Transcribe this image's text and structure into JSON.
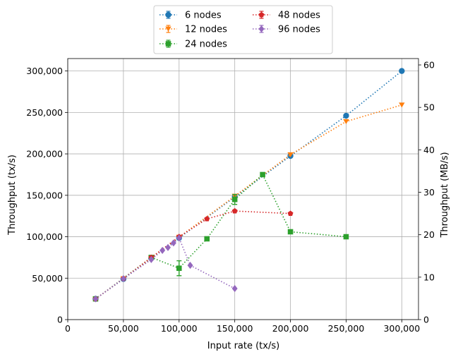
{
  "chart_data": {
    "type": "line",
    "xlabel": "Input rate (tx/s)",
    "ylabel": "Throughput (tx/s)",
    "y2label": "Throughput (MB/s)",
    "xlim": [
      0,
      315000
    ],
    "ylim": [
      0,
      315000
    ],
    "y2lim": [
      0,
      61.5
    ],
    "x_ticks": [
      0,
      50000,
      100000,
      150000,
      200000,
      250000,
      300000
    ],
    "x_tick_labels": [
      "0",
      "50,000",
      "100,000",
      "150,000",
      "200,000",
      "250,000",
      "300,000"
    ],
    "y_ticks": [
      0,
      50000,
      100000,
      150000,
      200000,
      250000,
      300000
    ],
    "y_tick_labels": [
      "0",
      "50,000",
      "100,000",
      "150,000",
      "200,000",
      "250,000",
      "300,000"
    ],
    "y2_ticks": [
      0,
      10,
      20,
      30,
      40,
      50,
      60
    ],
    "y2_tick_labels": [
      "0",
      "10",
      "20",
      "30",
      "40",
      "50",
      "60"
    ],
    "grid": true,
    "legend_position": "top-center",
    "series": [
      {
        "name": "6 nodes",
        "color": "#1f77b4",
        "marker": "circle",
        "points": [
          {
            "x": 25000,
            "y": 25000
          },
          {
            "x": 50000,
            "y": 49000
          },
          {
            "x": 75000,
            "y": 74000
          },
          {
            "x": 100000,
            "y": 98500
          },
          {
            "x": 150000,
            "y": 148000
          },
          {
            "x": 200000,
            "y": 197500
          },
          {
            "x": 250000,
            "y": 246000
          },
          {
            "x": 300000,
            "y": 300000
          }
        ]
      },
      {
        "name": "12 nodes",
        "color": "#ff7f0e",
        "marker": "triangle-down",
        "points": [
          {
            "x": 25000,
            "y": 25000
          },
          {
            "x": 50000,
            "y": 49500
          },
          {
            "x": 75000,
            "y": 74500
          },
          {
            "x": 100000,
            "y": 99500
          },
          {
            "x": 150000,
            "y": 149000
          },
          {
            "x": 200000,
            "y": 199000
          },
          {
            "x": 250000,
            "y": 239000
          },
          {
            "x": 300000,
            "y": 259000
          }
        ]
      },
      {
        "name": "24 nodes",
        "color": "#2ca02c",
        "marker": "square",
        "points": [
          {
            "x": 25000,
            "y": 25000
          },
          {
            "x": 75000,
            "y": 75000
          },
          {
            "x": 100000,
            "y": 62000,
            "err": 9000
          },
          {
            "x": 125000,
            "y": 97500
          },
          {
            "x": 150000,
            "y": 145000,
            "err": 6000
          },
          {
            "x": 175000,
            "y": 175000
          },
          {
            "x": 200000,
            "y": 106000
          },
          {
            "x": 250000,
            "y": 100000
          }
        ]
      },
      {
        "name": "48 nodes",
        "color": "#d62728",
        "marker": "pentagon",
        "points": [
          {
            "x": 25000,
            "y": 25000
          },
          {
            "x": 50000,
            "y": 49500
          },
          {
            "x": 75000,
            "y": 75000
          },
          {
            "x": 100000,
            "y": 100000
          },
          {
            "x": 125000,
            "y": 121500
          },
          {
            "x": 150000,
            "y": 131000
          },
          {
            "x": 200000,
            "y": 128000
          }
        ]
      },
      {
        "name": "96 nodes",
        "color": "#9467bd",
        "marker": "diamond",
        "points": [
          {
            "x": 25000,
            "y": 25000
          },
          {
            "x": 50000,
            "y": 49500
          },
          {
            "x": 75000,
            "y": 72500
          },
          {
            "x": 85000,
            "y": 83500
          },
          {
            "x": 90000,
            "y": 87000
          },
          {
            "x": 95000,
            "y": 92500
          },
          {
            "x": 100000,
            "y": 98500
          },
          {
            "x": 110000,
            "y": 65500
          },
          {
            "x": 150000,
            "y": 37500
          }
        ]
      }
    ]
  }
}
